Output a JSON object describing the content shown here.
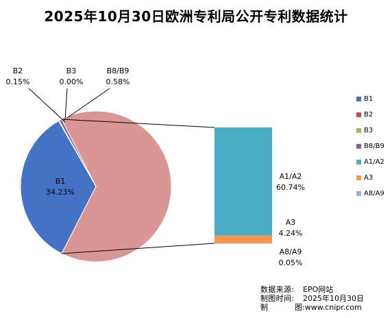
{
  "title": "2025年10月30日欧洲专利局公开专利数据统计",
  "chart_data": {
    "type": "pie",
    "subtype": "pie-of-bar",
    "title": "2025年10月30日欧洲专利局公开专利数据统计",
    "pie": {
      "slices": [
        {
          "name": "B1",
          "value": 34.23,
          "label_name": "B1",
          "label_pct": "34.23%",
          "color": "#4472C4"
        },
        {
          "name": "B2",
          "value": 0.15,
          "label_name": "B2",
          "label_pct": "0.15%",
          "color": "#C0504D"
        },
        {
          "name": "B3",
          "value": 0.0,
          "label_name": "B3",
          "label_pct": "0.00%",
          "color": "#9BBB59"
        },
        {
          "name": "B8/B9",
          "value": 0.58,
          "label_name": "B8/B9",
          "label_pct": "0.58%",
          "color": "#8064A2"
        },
        {
          "name": "Other",
          "value": 65.03,
          "label_name": "",
          "label_pct": "",
          "color": "#D99694"
        }
      ]
    },
    "bar": {
      "segments": [
        {
          "name": "A1/A2",
          "value": 60.74,
          "label_name": "A1/A2",
          "label_pct": "60.74%",
          "color": "#4BACC6"
        },
        {
          "name": "A3",
          "value": 4.24,
          "label_name": "A3",
          "label_pct": "4.24%",
          "color": "#F79646"
        },
        {
          "name": "A8/A9",
          "value": 0.05,
          "label_name": "A8/A9",
          "label_pct": "0.05%",
          "color": "#95B3D7"
        }
      ]
    },
    "legend": {
      "position": "right",
      "items": [
        {
          "name": "B1",
          "color": "#4472C4"
        },
        {
          "name": "B2",
          "color": "#C0504D"
        },
        {
          "name": "B3",
          "color": "#9BBB59"
        },
        {
          "name": "B8/B9",
          "color": "#8064A2"
        },
        {
          "name": "A1/A2",
          "color": "#4BACC6"
        },
        {
          "name": "A3",
          "color": "#F79646"
        },
        {
          "name": "A8/A9",
          "color": "#95B3D7"
        }
      ]
    }
  },
  "source": {
    "data_source_label": "数据来源:",
    "data_source_value": "EPO网站",
    "date_label": "制图时间:",
    "date_value": "2025年10月30日",
    "maker_label_a": "制",
    "maker_label_b": "图:",
    "maker_value": "www.cnipr.com"
  }
}
